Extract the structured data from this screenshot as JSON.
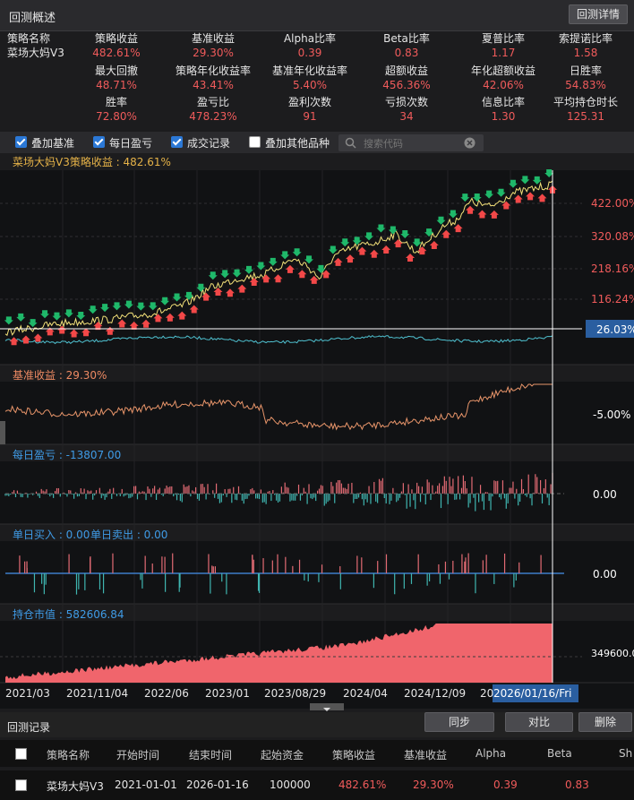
{
  "header": {
    "title": "回测概述",
    "detail_button": "回测详情"
  },
  "summary": [
    {
      "label": "策略名称",
      "value": "菜场大妈V3",
      "white": true
    },
    {
      "label": "策略收益",
      "value": "482.61%"
    },
    {
      "label": "基准收益",
      "value": "29.30%"
    },
    {
      "label": "Alpha比率",
      "value": "0.39"
    },
    {
      "label": "Beta比率",
      "value": "0.83"
    },
    {
      "label": "夏普比率",
      "value": "1.17"
    },
    {
      "label": "索提诺比率",
      "value": "1.58"
    },
    {
      "label": "",
      "value": ""
    },
    {
      "label": "最大回撤",
      "value": "48.71%"
    },
    {
      "label": "策略年化收益率",
      "value": "43.41%"
    },
    {
      "label": "基准年化收益率",
      "value": "5.40%"
    },
    {
      "label": "超额收益",
      "value": "456.36%"
    },
    {
      "label": "年化超额收益",
      "value": "42.06%"
    },
    {
      "label": "日胜率",
      "value": "54.83%"
    },
    {
      "label": "",
      "value": ""
    },
    {
      "label": "胜率",
      "value": "72.80%"
    },
    {
      "label": "盈亏比",
      "value": "478.23%"
    },
    {
      "label": "盈利次数",
      "value": "91"
    },
    {
      "label": "亏损次数",
      "value": "34"
    },
    {
      "label": "信息比率",
      "value": "1.30"
    },
    {
      "label": "平均持仓时长",
      "value": "125.31"
    }
  ],
  "options": {
    "overlay_benchmark": "叠加基准",
    "daily_pnl": "每日盈亏",
    "trade_records": "成交记录",
    "overlay_other": "叠加其他品种",
    "search_placeholder": "搜索代码"
  },
  "panels": {
    "strategy_label": "菜场大妈V3策略收益 : 482.61%",
    "benchmark_label": "基准收益 : 29.30%",
    "daily_pnl_label": "每日盈亏 : -13807.00",
    "buy_label": "单日买入 : 0.00",
    "sell_label": "单日卖出 : 0.00",
    "position_label": "持仓市值 : 582606.84"
  },
  "axes": {
    "strategy_ticks": [
      "422.00%",
      "320.08%",
      "218.16%",
      "116.24%"
    ],
    "strategy_current": "26.03%",
    "benchmark_tick": "-5.00%",
    "pnl_tick": "0.00",
    "trade_tick": "0.00",
    "position_tick": "349600.0",
    "dates": [
      "2021/03",
      "2021/11/04",
      "2022/06",
      "2023/01",
      "2023/08/29",
      "2024/04",
      "2024/12/09",
      "20"
    ],
    "cursor_date": "2026/01/16/Fri"
  },
  "colors": {
    "strategy_line": "#f4e27a",
    "benchmark_line": "#e8956a",
    "benchmark_in_main": "#4fc1d0",
    "pnl_pos": "#e36b74",
    "pnl_neg": "#3fb5b0",
    "area": "#f0656c",
    "buy_arrow": "#f24848",
    "sell_arrow": "#1fb86a"
  },
  "records": {
    "title": "回测记录",
    "sync": "同步",
    "compare": "对比",
    "delete": "删除",
    "columns": [
      "策略名称",
      "开始时间",
      "结束时间",
      "起始资金",
      "策略收益",
      "基准收益",
      "Alpha",
      "Beta",
      "Sh"
    ],
    "rows": [
      [
        "菜场大妈V3",
        "2021-01-01",
        "2026-01-16",
        "100000",
        "482.61%",
        "29.30%",
        "0.39",
        "0.83",
        ""
      ]
    ]
  }
}
